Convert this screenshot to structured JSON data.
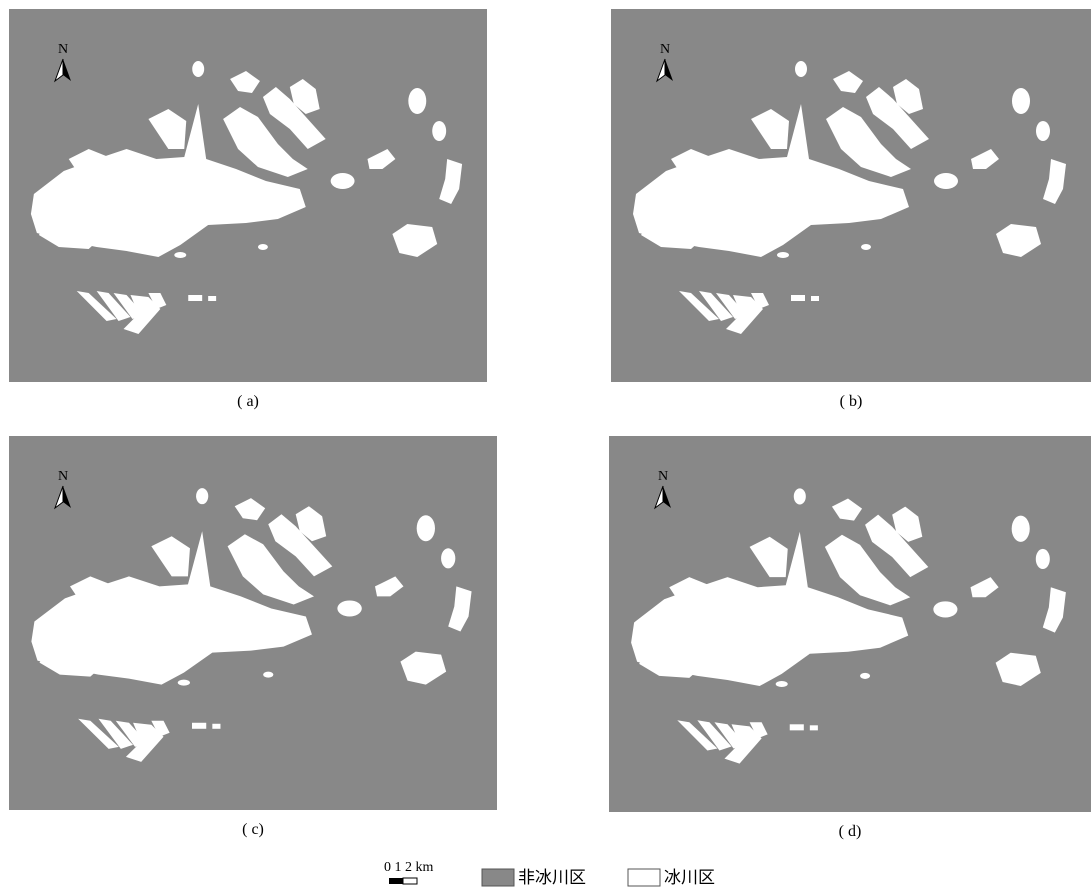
{
  "panels": [
    {
      "label": "( a)"
    },
    {
      "label": "( b)"
    },
    {
      "label": "( c)"
    },
    {
      "label": "( d)"
    }
  ],
  "north": "N",
  "scale_bar": "0 1 2 km",
  "legend": [
    {
      "label": "非冰川区"
    },
    {
      "label": "冰川区"
    }
  ]
}
